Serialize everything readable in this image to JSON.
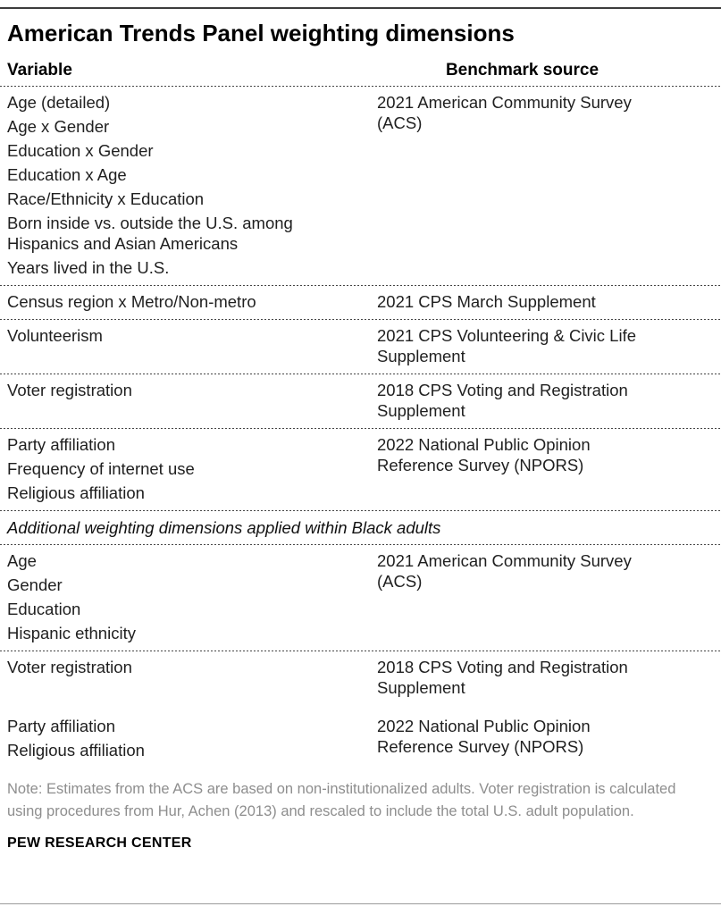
{
  "page": {
    "title": "American Trends Panel weighting dimensions",
    "note": "Note: Estimates from the ACS are based on non-institutionalized adults. Voter registration is calculated using procedures from Hur, Achen (2013) and rescaled to include the total U.S. adult population.",
    "footer": "PEW RESEARCH CENTER",
    "colors": {
      "text": "#1f1f1f",
      "note_gray": "#8e8e8e",
      "top_rule": "#3d3d3d",
      "bottom_rule": "#9b9b9b",
      "divider_dash": "#454545"
    }
  },
  "table": {
    "headers": {
      "variable": "Variable",
      "benchmark": "Benchmark source"
    },
    "section_label": "Additional weighting dimensions applied within Black adults",
    "rows": [
      {
        "variables": [
          "Age (detailed)",
          "Age x Gender",
          "Education x Gender",
          "Education x Age",
          "Race/Ethnicity x Education",
          "Born inside vs. outside the U.S. among Hispanics and Asian Americans",
          "Years lived in the U.S."
        ],
        "benchmark": "2021 American Community Survey (ACS)"
      },
      {
        "variables": [
          "Census region x Metro/Non-metro"
        ],
        "benchmark": "2021 CPS March Supplement"
      },
      {
        "variables": [
          "Volunteerism"
        ],
        "benchmark": "2021 CPS Volunteering & Civic Life Supplement"
      },
      {
        "variables": [
          "Voter registration"
        ],
        "benchmark": "2018 CPS Voting and Registration Supplement"
      },
      {
        "variables": [
          "Party affiliation",
          "Frequency of internet use",
          "Religious affiliation"
        ],
        "benchmark": "2022 National Public Opinion Reference Survey (NPORS)"
      },
      {
        "variables": [
          "Age",
          "Gender",
          "Education",
          "Hispanic ethnicity"
        ],
        "benchmark": "2021 American Community Survey (ACS)"
      },
      {
        "variables": [
          "Voter registration"
        ],
        "benchmark": "2018 CPS Voting and Registration Supplement"
      },
      {
        "variables": [
          "Party affiliation",
          "Religious affiliation"
        ],
        "benchmark": "2022 National Public Opinion Reference Survey (NPORS)"
      }
    ]
  }
}
